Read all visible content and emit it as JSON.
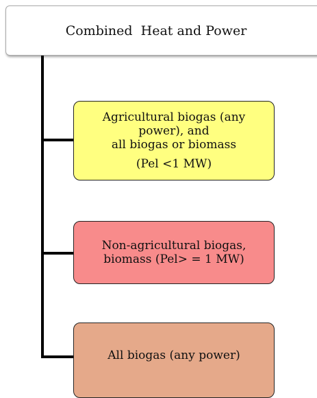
{
  "root": {
    "label": "Combined  Heat and Power"
  },
  "nodes": [
    {
      "lines": [
        "Agricultural biogas (any",
        "power), and",
        "all biogas or biomass",
        "(Pel <1 MW)"
      ]
    },
    {
      "lines": [
        "Non-agricultural biogas,",
        "biomass (Pel> = 1 MW)"
      ]
    },
    {
      "lines": [
        "All biogas (any power)"
      ]
    }
  ]
}
